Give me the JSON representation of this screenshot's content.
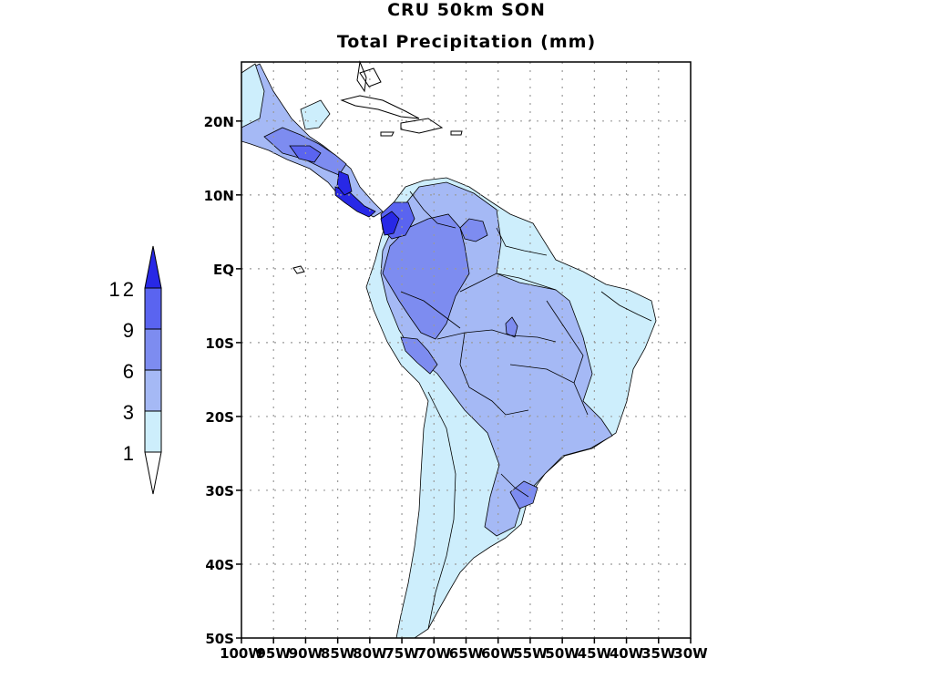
{
  "figure": {
    "title_line1": "CRU 50km SON",
    "title_line2": "Total Precipitation (mm)"
  },
  "map": {
    "lon_range": [
      -100,
      -30
    ],
    "lat_range": [
      -50,
      28
    ],
    "lat_ticks": [
      {
        "value": 20,
        "label": "20N"
      },
      {
        "value": 10,
        "label": "10N"
      },
      {
        "value": 0,
        "label": "EQ"
      },
      {
        "value": -10,
        "label": "10S"
      },
      {
        "value": -20,
        "label": "20S"
      },
      {
        "value": -30,
        "label": "30S"
      },
      {
        "value": -40,
        "label": "40S"
      },
      {
        "value": -50,
        "label": "50S"
      }
    ],
    "lon_ticks": [
      {
        "value": -100,
        "label": "100W"
      },
      {
        "value": -95,
        "label": "95W"
      },
      {
        "value": -90,
        "label": "90W"
      },
      {
        "value": -85,
        "label": "85W"
      },
      {
        "value": -80,
        "label": "80W"
      },
      {
        "value": -75,
        "label": "75W"
      },
      {
        "value": -70,
        "label": "70W"
      },
      {
        "value": -65,
        "label": "65W"
      },
      {
        "value": -60,
        "label": "60W"
      },
      {
        "value": -55,
        "label": "55W"
      },
      {
        "value": -50,
        "label": "50W"
      },
      {
        "value": -45,
        "label": "45W"
      },
      {
        "value": -40,
        "label": "40W"
      },
      {
        "value": -35,
        "label": "35W"
      },
      {
        "value": -30,
        "label": "30W"
      }
    ]
  },
  "colorbar": {
    "levels": [
      {
        "label": "12",
        "value": 12
      },
      {
        "label": "9",
        "value": 9
      },
      {
        "label": "6",
        "value": 6
      },
      {
        "label": "3",
        "value": 3
      },
      {
        "label": "1",
        "value": 1
      }
    ],
    "colors": {
      "over_12": "#2828e6",
      "9_12": "#5a64f0",
      "6_9": "#7d8cf0",
      "3_6": "#a5b9f5",
      "1_3": "#cdeefc",
      "under_1": "#ffffff"
    }
  }
}
